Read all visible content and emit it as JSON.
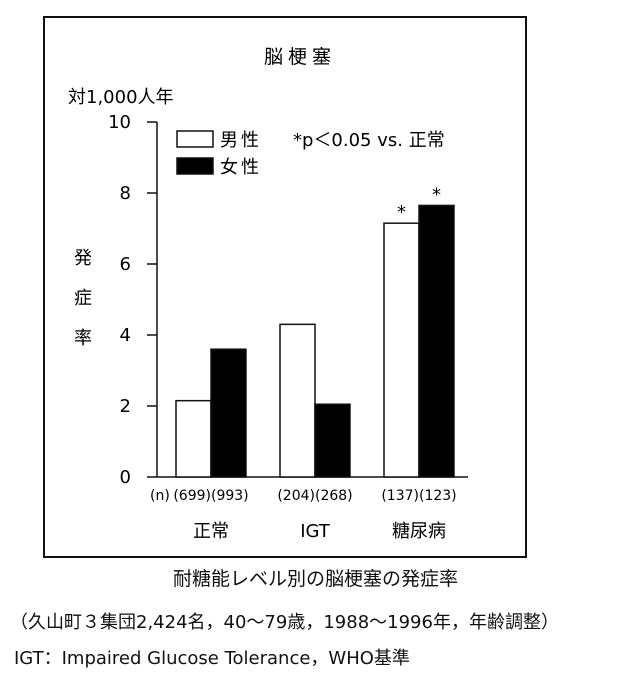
{
  "chart_data": {
    "type": "bar",
    "title": "脳梗塞",
    "unit_label": "対1,000人年",
    "ylabel": "発症率",
    "ylim": [
      0,
      10
    ],
    "yticks": [
      0,
      2,
      4,
      6,
      8,
      10
    ],
    "n_label": "(n)",
    "categories": [
      "正常",
      "IGT",
      "糖尿病"
    ],
    "n_values": [
      "(699)(993)",
      "(204)(268)",
      "(137)(123)"
    ],
    "series": [
      {
        "name": "男性",
        "color": "#ffffff",
        "values": [
          2.15,
          4.3,
          7.15
        ],
        "marks": [
          "",
          "",
          "*"
        ]
      },
      {
        "name": "女性",
        "color": "#000000",
        "values": [
          3.6,
          2.05,
          7.65
        ],
        "marks": [
          "",
          "",
          "*"
        ]
      }
    ],
    "annotation": "*p＜0.05 vs. 正常",
    "grid": false,
    "legend_position": "top-left"
  },
  "caption": "耐糖能レベル別の脳梗塞の発症率",
  "notes": [
    "（久山町３集団2,424名，40〜79歳，1988〜1996年，年齢調整）",
    "IGT：Impaired Glucose Tolerance，WHO基準"
  ]
}
